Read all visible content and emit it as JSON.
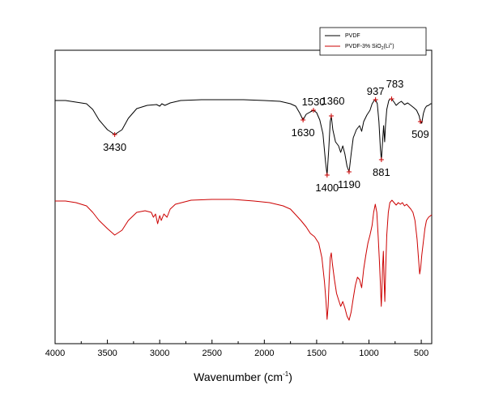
{
  "chart_data": {
    "type": "line",
    "xlabel": "Wavenumber (cm",
    "xlabel_sup": "-1",
    "xlabel_close": ")",
    "xlim": [
      4000,
      400
    ],
    "x_ticks": [
      4000,
      3500,
      3000,
      2500,
      2000,
      1500,
      1000,
      500
    ],
    "legend": {
      "placement": "top-right",
      "entries": [
        {
          "label": "PVDF",
          "color": "#000000"
        },
        {
          "label": "PVDF-3% SiO",
          "sub": "2",
          "paren": "(Li",
          "sup": "+",
          "close": ")",
          "color": "#cc0000"
        }
      ]
    },
    "series": [
      {
        "name": "PVDF",
        "color": "#000000",
        "points": [
          [
            4000,
            124
          ],
          [
            3900,
            124
          ],
          [
            3800,
            126
          ],
          [
            3700,
            128
          ],
          [
            3640,
            135
          ],
          [
            3580,
            148
          ],
          [
            3500,
            160
          ],
          [
            3430,
            166
          ],
          [
            3360,
            160
          ],
          [
            3300,
            146
          ],
          [
            3220,
            134
          ],
          [
            3120,
            130
          ],
          [
            3030,
            129
          ],
          [
            3000,
            131
          ],
          [
            2980,
            128
          ],
          [
            2950,
            130
          ],
          [
            2900,
            127
          ],
          [
            2800,
            124
          ],
          [
            2600,
            123
          ],
          [
            2400,
            123
          ],
          [
            2200,
            123
          ],
          [
            2000,
            124
          ],
          [
            1850,
            125
          ],
          [
            1750,
            128
          ],
          [
            1700,
            131
          ],
          [
            1660,
            140
          ],
          [
            1630,
            148
          ],
          [
            1600,
            141
          ],
          [
            1560,
            138
          ],
          [
            1530,
            136
          ],
          [
            1500,
            139
          ],
          [
            1470,
            148
          ],
          [
            1440,
            165
          ],
          [
            1415,
            200
          ],
          [
            1400,
            216
          ],
          [
            1385,
            185
          ],
          [
            1370,
            150
          ],
          [
            1360,
            143
          ],
          [
            1345,
            160
          ],
          [
            1320,
            175
          ],
          [
            1290,
            180
          ],
          [
            1270,
            188
          ],
          [
            1250,
            180
          ],
          [
            1230,
            190
          ],
          [
            1210,
            205
          ],
          [
            1190,
            212
          ],
          [
            1170,
            190
          ],
          [
            1150,
            170
          ],
          [
            1120,
            160
          ],
          [
            1090,
            155
          ],
          [
            1070,
            162
          ],
          [
            1050,
            150
          ],
          [
            1020,
            142
          ],
          [
            990,
            136
          ],
          [
            970,
            128
          ],
          [
            950,
            124
          ],
          [
            937,
            123
          ],
          [
            920,
            128
          ],
          [
            905,
            150
          ],
          [
            890,
            185
          ],
          [
            881,
            197
          ],
          [
            870,
            175
          ],
          [
            860,
            155
          ],
          [
            850,
            175
          ],
          [
            842,
            155
          ],
          [
            830,
            135
          ],
          [
            810,
            124
          ],
          [
            795,
            122
          ],
          [
            783,
            122
          ],
          [
            760,
            126
          ],
          [
            740,
            130
          ],
          [
            715,
            127
          ],
          [
            690,
            125
          ],
          [
            660,
            129
          ],
          [
            630,
            127
          ],
          [
            600,
            130
          ],
          [
            570,
            133
          ],
          [
            545,
            136
          ],
          [
            520,
            143
          ],
          [
            509,
            150
          ],
          [
            495,
            152
          ],
          [
            480,
            140
          ],
          [
            465,
            134
          ],
          [
            450,
            131
          ],
          [
            430,
            130
          ],
          [
            410,
            128
          ],
          [
            400,
            128
          ]
        ]
      },
      {
        "name": "PVDF-3% SiO2(Li+)",
        "color": "#cc0000",
        "points": [
          [
            4000,
            248
          ],
          [
            3900,
            248
          ],
          [
            3800,
            250
          ],
          [
            3700,
            254
          ],
          [
            3640,
            262
          ],
          [
            3580,
            272
          ],
          [
            3500,
            282
          ],
          [
            3430,
            290
          ],
          [
            3360,
            284
          ],
          [
            3300,
            272
          ],
          [
            3220,
            262
          ],
          [
            3140,
            260
          ],
          [
            3080,
            262
          ],
          [
            3060,
            268
          ],
          [
            3040,
            264
          ],
          [
            3020,
            276
          ],
          [
            3000,
            266
          ],
          [
            2985,
            272
          ],
          [
            2960,
            264
          ],
          [
            2930,
            268
          ],
          [
            2900,
            258
          ],
          [
            2850,
            252
          ],
          [
            2700,
            247
          ],
          [
            2500,
            246
          ],
          [
            2300,
            246
          ],
          [
            2100,
            248
          ],
          [
            1950,
            250
          ],
          [
            1820,
            254
          ],
          [
            1750,
            258
          ],
          [
            1700,
            265
          ],
          [
            1650,
            272
          ],
          [
            1600,
            280
          ],
          [
            1560,
            288
          ],
          [
            1520,
            292
          ],
          [
            1480,
            300
          ],
          [
            1450,
            318
          ],
          [
            1425,
            348
          ],
          [
            1410,
            372
          ],
          [
            1400,
            394
          ],
          [
            1390,
            378
          ],
          [
            1380,
            345
          ],
          [
            1370,
            318
          ],
          [
            1360,
            312
          ],
          [
            1350,
            325
          ],
          [
            1330,
            345
          ],
          [
            1310,
            362
          ],
          [
            1290,
            370
          ],
          [
            1270,
            378
          ],
          [
            1250,
            372
          ],
          [
            1230,
            380
          ],
          [
            1210,
            390
          ],
          [
            1190,
            395
          ],
          [
            1170,
            385
          ],
          [
            1150,
            368
          ],
          [
            1130,
            352
          ],
          [
            1110,
            342
          ],
          [
            1090,
            345
          ],
          [
            1070,
            355
          ],
          [
            1050,
            332
          ],
          [
            1030,
            315
          ],
          [
            1010,
            300
          ],
          [
            990,
            290
          ],
          [
            970,
            278
          ],
          [
            955,
            262
          ],
          [
            940,
            252
          ],
          [
            925,
            262
          ],
          [
            912,
            292
          ],
          [
            900,
            322
          ],
          [
            890,
            352
          ],
          [
            882,
            378
          ],
          [
            876,
            358
          ],
          [
            870,
            330
          ],
          [
            862,
            310
          ],
          [
            855,
            345
          ],
          [
            848,
            372
          ],
          [
            840,
            330
          ],
          [
            830,
            290
          ],
          [
            815,
            262
          ],
          [
            800,
            250
          ],
          [
            780,
            247
          ],
          [
            760,
            250
          ],
          [
            740,
            253
          ],
          [
            720,
            250
          ],
          [
            700,
            252
          ],
          [
            680,
            250
          ],
          [
            660,
            254
          ],
          [
            640,
            252
          ],
          [
            620,
            255
          ],
          [
            600,
            258
          ],
          [
            580,
            262
          ],
          [
            560,
            272
          ],
          [
            540,
            295
          ],
          [
            525,
            322
          ],
          [
            515,
            338
          ],
          [
            505,
            330
          ],
          [
            495,
            315
          ],
          [
            480,
            298
          ],
          [
            465,
            282
          ],
          [
            450,
            272
          ],
          [
            430,
            268
          ],
          [
            410,
            266
          ],
          [
            400,
            265
          ]
        ]
      }
    ],
    "peak_labels": [
      {
        "text": "3430",
        "x": 3430,
        "y": 166,
        "pos": "below"
      },
      {
        "text": "1630",
        "x": 1630,
        "y": 148,
        "pos": "below-left"
      },
      {
        "text": "1530",
        "x": 1530,
        "y": 136,
        "pos": "above"
      },
      {
        "text": "1360",
        "x": 1360,
        "y": 143,
        "pos": "above-right"
      },
      {
        "text": "1400",
        "x": 1400,
        "y": 216,
        "pos": "below"
      },
      {
        "text": "1190",
        "x": 1190,
        "y": 212,
        "pos": "below"
      },
      {
        "text": "937",
        "x": 937,
        "y": 123,
        "pos": "above"
      },
      {
        "text": "783",
        "x": 783,
        "y": 122,
        "pos": "above-left"
      },
      {
        "text": "881",
        "x": 881,
        "y": 197,
        "pos": "below"
      },
      {
        "text": "509",
        "x": 509,
        "y": 150,
        "pos": "below"
      }
    ]
  }
}
